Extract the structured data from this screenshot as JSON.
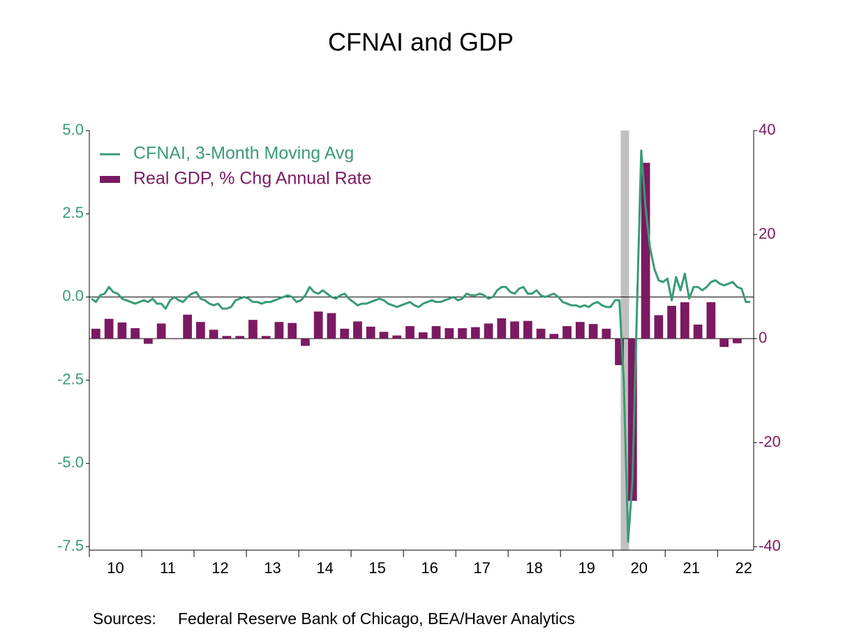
{
  "chart_data": {
    "type": "combo",
    "title": "CFNAI and GDP",
    "source_label": "Sources:",
    "source": "Federal Reserve Bank of Chicago, BEA/Haver Analytics",
    "xlim": [
      2010,
      2022.69
    ],
    "xticks": [
      {
        "value": 2010,
        "label": "10"
      },
      {
        "value": 2011,
        "label": "11"
      },
      {
        "value": 2012,
        "label": "12"
      },
      {
        "value": 2013,
        "label": "13"
      },
      {
        "value": 2014,
        "label": "14"
      },
      {
        "value": 2015,
        "label": "15"
      },
      {
        "value": 2016,
        "label": "16"
      },
      {
        "value": 2017,
        "label": "17"
      },
      {
        "value": 2018,
        "label": "18"
      },
      {
        "value": 2019,
        "label": "19"
      },
      {
        "value": 2020,
        "label": "20"
      },
      {
        "value": 2021,
        "label": "21"
      },
      {
        "value": 2022,
        "label": "22"
      }
    ],
    "ylim": [
      -7.5,
      5
    ],
    "yticks": [
      {
        "value": 5,
        "label": "5.0"
      },
      {
        "value": 2.5,
        "label": "2.5"
      },
      {
        "value": 0,
        "label": "0.0"
      },
      {
        "value": -2.5,
        "label": "-2.5"
      },
      {
        "value": -5,
        "label": "-5.0"
      },
      {
        "value": -7.5,
        "label": "-7.5"
      }
    ],
    "y2lim": [
      -40,
      40
    ],
    "y2ticks": [
      40,
      20,
      0,
      -20,
      -40
    ],
    "y_color": "#3a9a74",
    "y2_color": "#7b1a62",
    "shading": [
      2020.15,
      2020.31
    ],
    "shading_color": "#c0c0c0",
    "series": [
      {
        "name": "CFNAI, 3-Month Moving Avg",
        "type": "line",
        "axis": "y",
        "color": "#3a9a74",
        "x": [
          2010.042,
          2010.125,
          2010.208,
          2010.292,
          2010.375,
          2010.458,
          2010.542,
          2010.625,
          2010.708,
          2010.792,
          2010.875,
          2010.958,
          2011.042,
          2011.125,
          2011.208,
          2011.292,
          2011.375,
          2011.458,
          2011.542,
          2011.625,
          2011.708,
          2011.792,
          2011.875,
          2011.958,
          2012.042,
          2012.125,
          2012.208,
          2012.292,
          2012.375,
          2012.458,
          2012.542,
          2012.625,
          2012.708,
          2012.792,
          2012.875,
          2012.958,
          2013.042,
          2013.125,
          2013.208,
          2013.292,
          2013.375,
          2013.458,
          2013.542,
          2013.625,
          2013.708,
          2013.792,
          2013.875,
          2013.958,
          2014.042,
          2014.125,
          2014.208,
          2014.292,
          2014.375,
          2014.458,
          2014.542,
          2014.625,
          2014.708,
          2014.792,
          2014.875,
          2014.958,
          2015.042,
          2015.125,
          2015.208,
          2015.292,
          2015.375,
          2015.458,
          2015.542,
          2015.625,
          2015.708,
          2015.792,
          2015.875,
          2015.958,
          2016.042,
          2016.125,
          2016.208,
          2016.292,
          2016.375,
          2016.458,
          2016.542,
          2016.625,
          2016.708,
          2016.792,
          2016.875,
          2016.958,
          2017.042,
          2017.125,
          2017.208,
          2017.292,
          2017.375,
          2017.458,
          2017.542,
          2017.625,
          2017.708,
          2017.792,
          2017.875,
          2017.958,
          2018.042,
          2018.125,
          2018.208,
          2018.292,
          2018.375,
          2018.458,
          2018.542,
          2018.625,
          2018.708,
          2018.792,
          2018.875,
          2018.958,
          2019.042,
          2019.125,
          2019.208,
          2019.292,
          2019.375,
          2019.458,
          2019.542,
          2019.625,
          2019.708,
          2019.792,
          2019.875,
          2019.958,
          2020.042,
          2020.125,
          2020.208,
          2020.292,
          2020.375,
          2020.458,
          2020.542,
          2020.625,
          2020.708,
          2020.792,
          2020.875,
          2020.958,
          2021.042,
          2021.125,
          2021.208,
          2021.292,
          2021.375,
          2021.458,
          2021.542,
          2021.625,
          2021.708,
          2021.792,
          2021.875,
          2021.958,
          2022.042,
          2022.125,
          2022.208,
          2022.292,
          2022.375,
          2022.458,
          2022.542,
          2022.625
        ],
        "values": [
          -0.05,
          -0.15,
          0.05,
          0.1,
          0.3,
          0.15,
          0.1,
          -0.05,
          -0.1,
          -0.15,
          -0.2,
          -0.15,
          -0.1,
          -0.15,
          -0.05,
          -0.2,
          -0.2,
          -0.35,
          -0.1,
          0.0,
          -0.1,
          -0.15,
          0.0,
          0.1,
          0.15,
          -0.05,
          -0.1,
          -0.2,
          -0.25,
          -0.2,
          -0.35,
          -0.35,
          -0.3,
          -0.1,
          -0.05,
          0.0,
          -0.05,
          -0.15,
          -0.15,
          -0.2,
          -0.15,
          -0.15,
          -0.1,
          -0.05,
          0.0,
          0.05,
          0.0,
          -0.15,
          -0.1,
          0.05,
          0.3,
          0.15,
          0.1,
          0.2,
          0.1,
          0.0,
          -0.05,
          0.05,
          0.1,
          -0.05,
          -0.15,
          -0.25,
          -0.2,
          -0.2,
          -0.15,
          -0.1,
          -0.05,
          -0.1,
          -0.2,
          -0.25,
          -0.3,
          -0.25,
          -0.2,
          -0.15,
          -0.25,
          -0.3,
          -0.2,
          -0.15,
          -0.1,
          -0.15,
          -0.15,
          -0.1,
          -0.05,
          0.0,
          -0.1,
          -0.05,
          0.1,
          0.05,
          0.05,
          0.1,
          0.05,
          -0.05,
          0.0,
          0.2,
          0.3,
          0.3,
          0.15,
          0.1,
          0.25,
          0.3,
          0.1,
          0.1,
          0.2,
          0.05,
          0.0,
          0.05,
          0.1,
          0.0,
          -0.15,
          -0.2,
          -0.25,
          -0.25,
          -0.3,
          -0.25,
          -0.3,
          -0.2,
          -0.15,
          -0.25,
          -0.3,
          -0.3,
          -0.1,
          -0.1,
          -2.5,
          -7.35,
          -5.5,
          -0.5,
          4.4,
          2.7,
          1.5,
          0.85,
          0.5,
          0.45,
          0.55,
          -0.1,
          0.6,
          0.2,
          0.7,
          -0.05,
          0.3,
          0.3,
          0.2,
          0.3,
          0.45,
          0.5,
          0.4,
          0.35,
          0.4,
          0.45,
          0.3,
          0.25,
          -0.15,
          -0.15
        ]
      },
      {
        "name": "Real GDP, % Chg Annual Rate",
        "type": "bar",
        "axis": "y2",
        "color": "#7b1a62",
        "x": [
          2010.125,
          2010.375,
          2010.625,
          2010.875,
          2011.125,
          2011.375,
          2011.625,
          2011.875,
          2012.125,
          2012.375,
          2012.625,
          2012.875,
          2013.125,
          2013.375,
          2013.625,
          2013.875,
          2014.125,
          2014.375,
          2014.625,
          2014.875,
          2015.125,
          2015.375,
          2015.625,
          2015.875,
          2016.125,
          2016.375,
          2016.625,
          2016.875,
          2017.125,
          2017.375,
          2017.625,
          2017.875,
          2018.125,
          2018.375,
          2018.625,
          2018.875,
          2019.125,
          2019.375,
          2019.625,
          2019.875,
          2020.125,
          2020.375,
          2020.625,
          2020.875,
          2021.125,
          2021.375,
          2021.625,
          2021.875,
          2022.125,
          2022.375
        ],
        "values": [
          1.9,
          3.8,
          3.1,
          2.0,
          -1.0,
          2.9,
          -0.1,
          4.6,
          3.2,
          1.7,
          0.5,
          0.5,
          3.6,
          0.5,
          3.2,
          3.0,
          -1.4,
          5.2,
          4.9,
          1.9,
          3.3,
          2.3,
          1.3,
          0.6,
          2.4,
          1.2,
          2.4,
          2.0,
          2.0,
          2.2,
          2.9,
          3.9,
          3.3,
          3.4,
          1.9,
          0.9,
          2.4,
          3.2,
          2.8,
          1.9,
          -5.1,
          -31.2,
          33.8,
          4.5,
          6.3,
          7.0,
          2.7,
          7.0,
          -1.6,
          -0.9
        ]
      }
    ]
  }
}
